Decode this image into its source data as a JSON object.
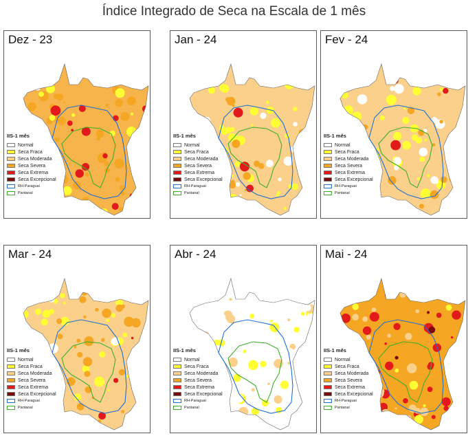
{
  "title": "Índice Integrado de Seca na Escala de 1 mês",
  "legend": {
    "title": "IIS-1 mês",
    "items": [
      {
        "label": "Normal",
        "color": "#ffffff"
      },
      {
        "label": "Seca Fraca",
        "color": "#ffff33"
      },
      {
        "label": "Seca Moderada",
        "color": "#fbd08a"
      },
      {
        "label": "Seca Severa",
        "color": "#f5a623"
      },
      {
        "label": "Seca Extrema",
        "color": "#e31a1c"
      },
      {
        "label": "Seca Excepcional",
        "color": "#7a0a0a"
      }
    ],
    "lines": [
      {
        "label": "RH-Paraguai",
        "color": "#1f6fd1"
      },
      {
        "label": "Pantanal",
        "color": "#3fae2a"
      }
    ]
  },
  "panels": [
    {
      "label": "Dez - 23",
      "base": "#f7b44a",
      "mix": {
        "severa": 0.35,
        "extrema": 0.18,
        "fraca": 0.12,
        "normal": 0.02
      }
    },
    {
      "label": "Jan - 24",
      "base": "#fbd08a",
      "mix": {
        "fraca": 0.3,
        "normal": 0.1,
        "severa": 0.12,
        "extrema": 0.03
      }
    },
    {
      "label": "Fev - 24",
      "base": "#fbd08a",
      "mix": {
        "fraca": 0.28,
        "normal": 0.12,
        "severa": 0.14,
        "extrema": 0.03
      }
    },
    {
      "label": "Mar - 24",
      "base": "#fbd08a",
      "mix": {
        "fraca": 0.25,
        "severa": 0.25,
        "normal": 0.05,
        "extrema": 0.03
      }
    },
    {
      "label": "Abr - 24",
      "base": "#ffffff",
      "mix": {
        "fraca": 0.22,
        "moderada": 0.2,
        "normal": 0.3
      }
    },
    {
      "label": "Mai - 24",
      "base": "#f5a623",
      "mix": {
        "extrema": 0.3,
        "excepcional": 0.06,
        "moderada": 0.2,
        "fraca": 0.08
      }
    }
  ]
}
